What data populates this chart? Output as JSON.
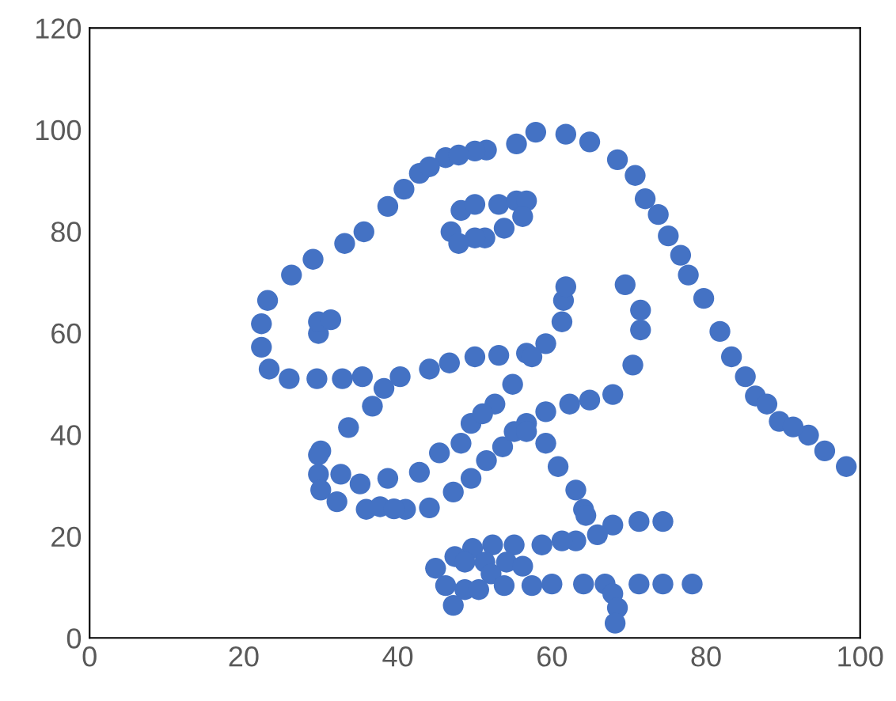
{
  "chart_data": {
    "type": "scatter",
    "marker": "circle",
    "grid": false,
    "xlim": [
      0,
      100
    ],
    "xticks": [
      0,
      20,
      40,
      60,
      80,
      100
    ],
    "ylim": [
      0,
      120
    ],
    "yticks": [
      0,
      20,
      40,
      60,
      80,
      100,
      120
    ],
    "series": [
      {
        "color": "#4472c4",
        "x": [
          55.4,
          51.5,
          46.2,
          42.8,
          40.8,
          38.7,
          35.6,
          33.1,
          29.0,
          26.2,
          23.1,
          22.3,
          22.3,
          23.3,
          25.9,
          29.5,
          32.8,
          35.4,
          40.3,
          44.1,
          46.7,
          50.0,
          53.1,
          56.7,
          59.2,
          61.3,
          61.5,
          61.8,
          57.4,
          54.9,
          52.6,
          48.2,
          49.5,
          51.0,
          45.4,
          42.8,
          38.7,
          35.1,
          32.6,
          30.0,
          33.6,
          36.7,
          38.2,
          29.7,
          29.7,
          30.0,
          32.1,
          35.9,
          41.0,
          44.1,
          47.2,
          49.5,
          51.5,
          53.6,
          55.1,
          56.7,
          59.2,
          62.3,
          64.9,
          67.9,
          70.5,
          71.5,
          71.5,
          69.5,
          46.9,
          48.2,
          50.0,
          53.1,
          55.4,
          56.7,
          56.2,
          53.8,
          51.3,
          50.0,
          47.9,
          29.7,
          29.7,
          31.3,
          57.9,
          61.8,
          64.9,
          68.5,
          70.8,
          72.1,
          73.8,
          75.1,
          76.7,
          77.7,
          79.7,
          81.8,
          83.3,
          85.1,
          86.4,
          87.9,
          89.5,
          93.3,
          95.4,
          98.2,
          56.7,
          59.2,
          60.8,
          63.1,
          64.1,
          64.4,
          74.4,
          71.3,
          67.9,
          65.9,
          63.1,
          61.3,
          58.7,
          55.1,
          52.3,
          49.7,
          47.4,
          44.9,
          48.7,
          51.3,
          54.1,
          56.2,
          52.1,
          48.7,
          47.2,
          46.2,
          50.5,
          53.8,
          57.4,
          60.0,
          64.1,
          66.9,
          71.3,
          74.4,
          78.2,
          67.9,
          68.5,
          68.2,
          37.7,
          39.5,
          91.3,
          50.0,
          47.9,
          44.1
        ],
        "values": [
          97.2,
          96.0,
          94.5,
          91.4,
          88.3,
          84.9,
          79.9,
          77.6,
          74.5,
          71.4,
          66.4,
          61.8,
          57.2,
          52.9,
          51.0,
          51.0,
          51.0,
          51.4,
          51.4,
          52.9,
          54.1,
          55.3,
          55.6,
          56.0,
          57.9,
          62.2,
          66.4,
          69.1,
          55.3,
          49.9,
          46.0,
          38.3,
          42.2,
          44.1,
          36.4,
          32.6,
          31.4,
          30.3,
          32.2,
          36.8,
          41.4,
          45.6,
          49.1,
          36.0,
          32.2,
          29.1,
          26.8,
          25.3,
          25.3,
          25.6,
          28.7,
          31.4,
          34.9,
          37.6,
          40.6,
          42.2,
          44.5,
          46.0,
          46.8,
          47.9,
          53.7,
          60.6,
          64.5,
          69.5,
          79.9,
          84.1,
          85.3,
          85.3,
          86.0,
          86.0,
          82.9,
          80.6,
          78.7,
          78.7,
          77.6,
          59.9,
          62.2,
          62.6,
          99.5,
          99.1,
          97.6,
          94.1,
          91.0,
          86.4,
          83.3,
          79.1,
          75.3,
          71.4,
          66.8,
          60.3,
          55.3,
          51.4,
          47.6,
          46.0,
          42.6,
          39.9,
          36.8,
          33.7,
          40.6,
          38.3,
          33.7,
          29.1,
          25.3,
          24.1,
          22.9,
          22.9,
          22.2,
          20.3,
          19.1,
          19.1,
          18.3,
          18.3,
          18.3,
          17.6,
          16.0,
          13.7,
          14.9,
          14.9,
          14.9,
          14.1,
          12.6,
          9.5,
          6.4,
          10.3,
          9.5,
          10.3,
          10.3,
          10.6,
          10.6,
          10.6,
          10.6,
          10.6,
          10.6,
          8.7,
          5.9,
          2.9,
          25.8,
          25.4,
          41.5,
          95.8,
          95.0,
          92.7
        ]
      }
    ]
  }
}
